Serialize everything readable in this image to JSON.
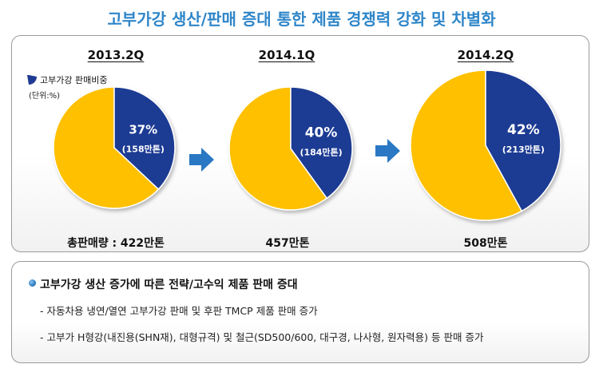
{
  "title": "고부가강 생산/판매 증대 통한 제품 경쟁력 강화 및 차별화",
  "colors": {
    "share": "#1f3a93",
    "rest": "#ffc000",
    "title": "#2f86c9",
    "arrow": "#2a78c4"
  },
  "legend": {
    "label": "고부가강 판매비중",
    "unit": "(단위:%)"
  },
  "chart_data": {
    "type": "pie",
    "title": "고부가강 판매비중",
    "unit": "%",
    "series": [
      {
        "period": "2013.2Q",
        "share_pct": 37,
        "share_label": "37%",
        "volume_label": "(158만톤)",
        "total_label": "총판매량 : 422만톤"
      },
      {
        "period": "2014.1Q",
        "share_pct": 40,
        "share_label": "40%",
        "volume_label": "(184만톤)",
        "total_label": "457만톤"
      },
      {
        "period": "2014.2Q",
        "share_pct": 42,
        "share_label": "42%",
        "volume_label": "(213만톤)",
        "total_label": "508만톤"
      }
    ]
  },
  "notes": {
    "headline": "고부가강 생산 증가에 따른 전략/고수익 제품 판매 증대",
    "items": [
      "- 자동차용 냉연/열연 고부가강 판매 및 후판 TMCP 제품 판매 증가",
      "- 고부가 H형강(내진용(SHN재), 대형규격) 및 철근(SD500/600, 대구경, 나사형, 원자력용) 등 판매 증가"
    ]
  }
}
